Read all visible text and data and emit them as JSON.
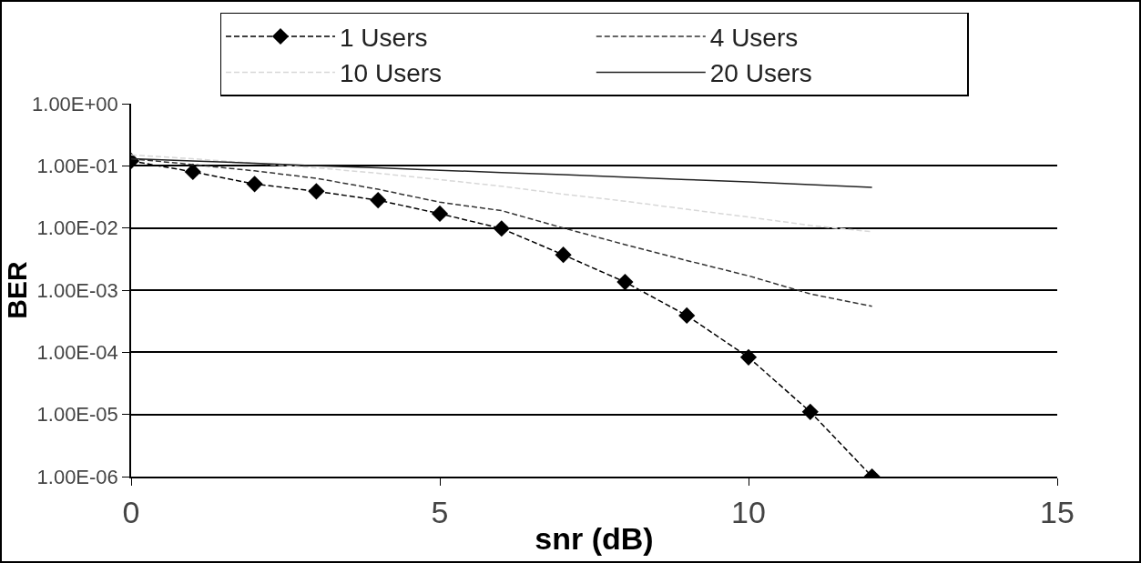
{
  "chart_data": {
    "type": "line",
    "xlabel": "snr (dB)",
    "ylabel": "BER",
    "log": "y",
    "grid": "y",
    "legend": "top",
    "x": [
      0,
      1,
      2,
      3,
      4,
      5,
      6,
      7,
      8,
      9,
      10,
      11,
      12
    ],
    "xlim": [
      0,
      15
    ],
    "xticks": [
      0,
      5,
      10,
      15
    ],
    "ylim": [
      1e-06,
      1
    ],
    "yticks": [
      {
        "value": 1,
        "label": "1.00E+00"
      },
      {
        "value": 0.1,
        "label": "1.00E-01"
      },
      {
        "value": 0.01,
        "label": "1.00E-02"
      },
      {
        "value": 0.001,
        "label": "1.00E-03"
      },
      {
        "value": 0.0001,
        "label": "1.00E-04"
      },
      {
        "value": 1e-05,
        "label": "1.00E-05"
      },
      {
        "value": 1e-06,
        "label": "1.00E-06"
      }
    ],
    "series": [
      {
        "name": "1 Users",
        "color": "#000000",
        "marker": "diamond",
        "line_style": "dashed",
        "values": [
          0.12,
          0.08,
          0.051,
          0.039,
          0.028,
          0.017,
          0.0098,
          0.0037,
          0.00135,
          0.00039,
          8.3e-05,
          1.1e-05,
          1e-06
        ]
      },
      {
        "name": "4 Users",
        "color": "#333333",
        "marker": "none",
        "line_style": "dashed",
        "values": [
          0.13,
          0.105,
          0.083,
          0.063,
          0.042,
          0.026,
          0.019,
          0.01,
          0.0054,
          0.003,
          0.0017,
          0.00087,
          0.00055
        ]
      },
      {
        "name": "10 Users",
        "color": "#d8d8d8",
        "marker": "none",
        "line_style": "dashed",
        "values": [
          0.15,
          0.13,
          0.11,
          0.093,
          0.076,
          0.06,
          0.047,
          0.035,
          0.027,
          0.02,
          0.015,
          0.011,
          0.0087
        ]
      },
      {
        "name": "20 Users",
        "color": "#222222",
        "marker": "none",
        "line_style": "solid",
        "values": [
          0.13,
          0.12,
          0.11,
          0.1,
          0.093,
          0.085,
          0.078,
          0.072,
          0.066,
          0.06,
          0.055,
          0.05,
          0.045
        ]
      }
    ]
  }
}
